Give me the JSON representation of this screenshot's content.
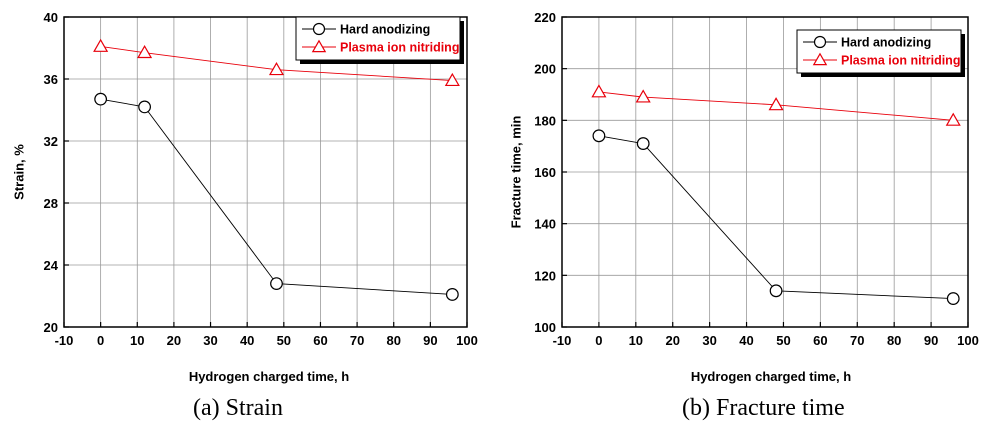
{
  "chart_data": [
    {
      "type": "line",
      "caption": "(a)  Strain",
      "xlabel": "Hydrogen charged time, h",
      "ylabel": "Strain, %",
      "xlim": [
        -10,
        100
      ],
      "ylim": [
        20,
        40
      ],
      "xticks": [
        -10,
        0,
        10,
        20,
        30,
        40,
        50,
        60,
        70,
        80,
        90,
        100
      ],
      "yticks": [
        20,
        24,
        28,
        32,
        36,
        40
      ],
      "grid": true,
      "legend_position": "top-right",
      "x": [
        0,
        12,
        48,
        96
      ],
      "series": [
        {
          "name": "Hard anodizing",
          "marker": "circle",
          "color": "#000000",
          "values": [
            34.7,
            34.2,
            22.8,
            22.1
          ]
        },
        {
          "name": "Plasma ion nitriding",
          "marker": "triangle",
          "color": "#e8000b",
          "values": [
            38.1,
            37.7,
            36.6,
            35.9
          ]
        }
      ]
    },
    {
      "type": "line",
      "caption": "(b)  Fracture  time",
      "xlabel": "Hydrogen charged time, h",
      "ylabel": "Fracture time, min",
      "xlim": [
        -10,
        100
      ],
      "ylim": [
        100,
        220
      ],
      "xticks": [
        -10,
        0,
        10,
        20,
        30,
        40,
        50,
        60,
        70,
        80,
        90,
        100
      ],
      "yticks": [
        100,
        120,
        140,
        160,
        180,
        200,
        220
      ],
      "grid": true,
      "legend_position": "top-right",
      "x": [
        0,
        12,
        48,
        96
      ],
      "series": [
        {
          "name": "Hard anodizing",
          "marker": "circle",
          "color": "#000000",
          "values": [
            174,
            171,
            114,
            111
          ]
        },
        {
          "name": "Plasma ion nitriding",
          "marker": "triangle",
          "color": "#e8000b",
          "values": [
            191,
            189,
            186,
            180
          ]
        }
      ]
    }
  ]
}
